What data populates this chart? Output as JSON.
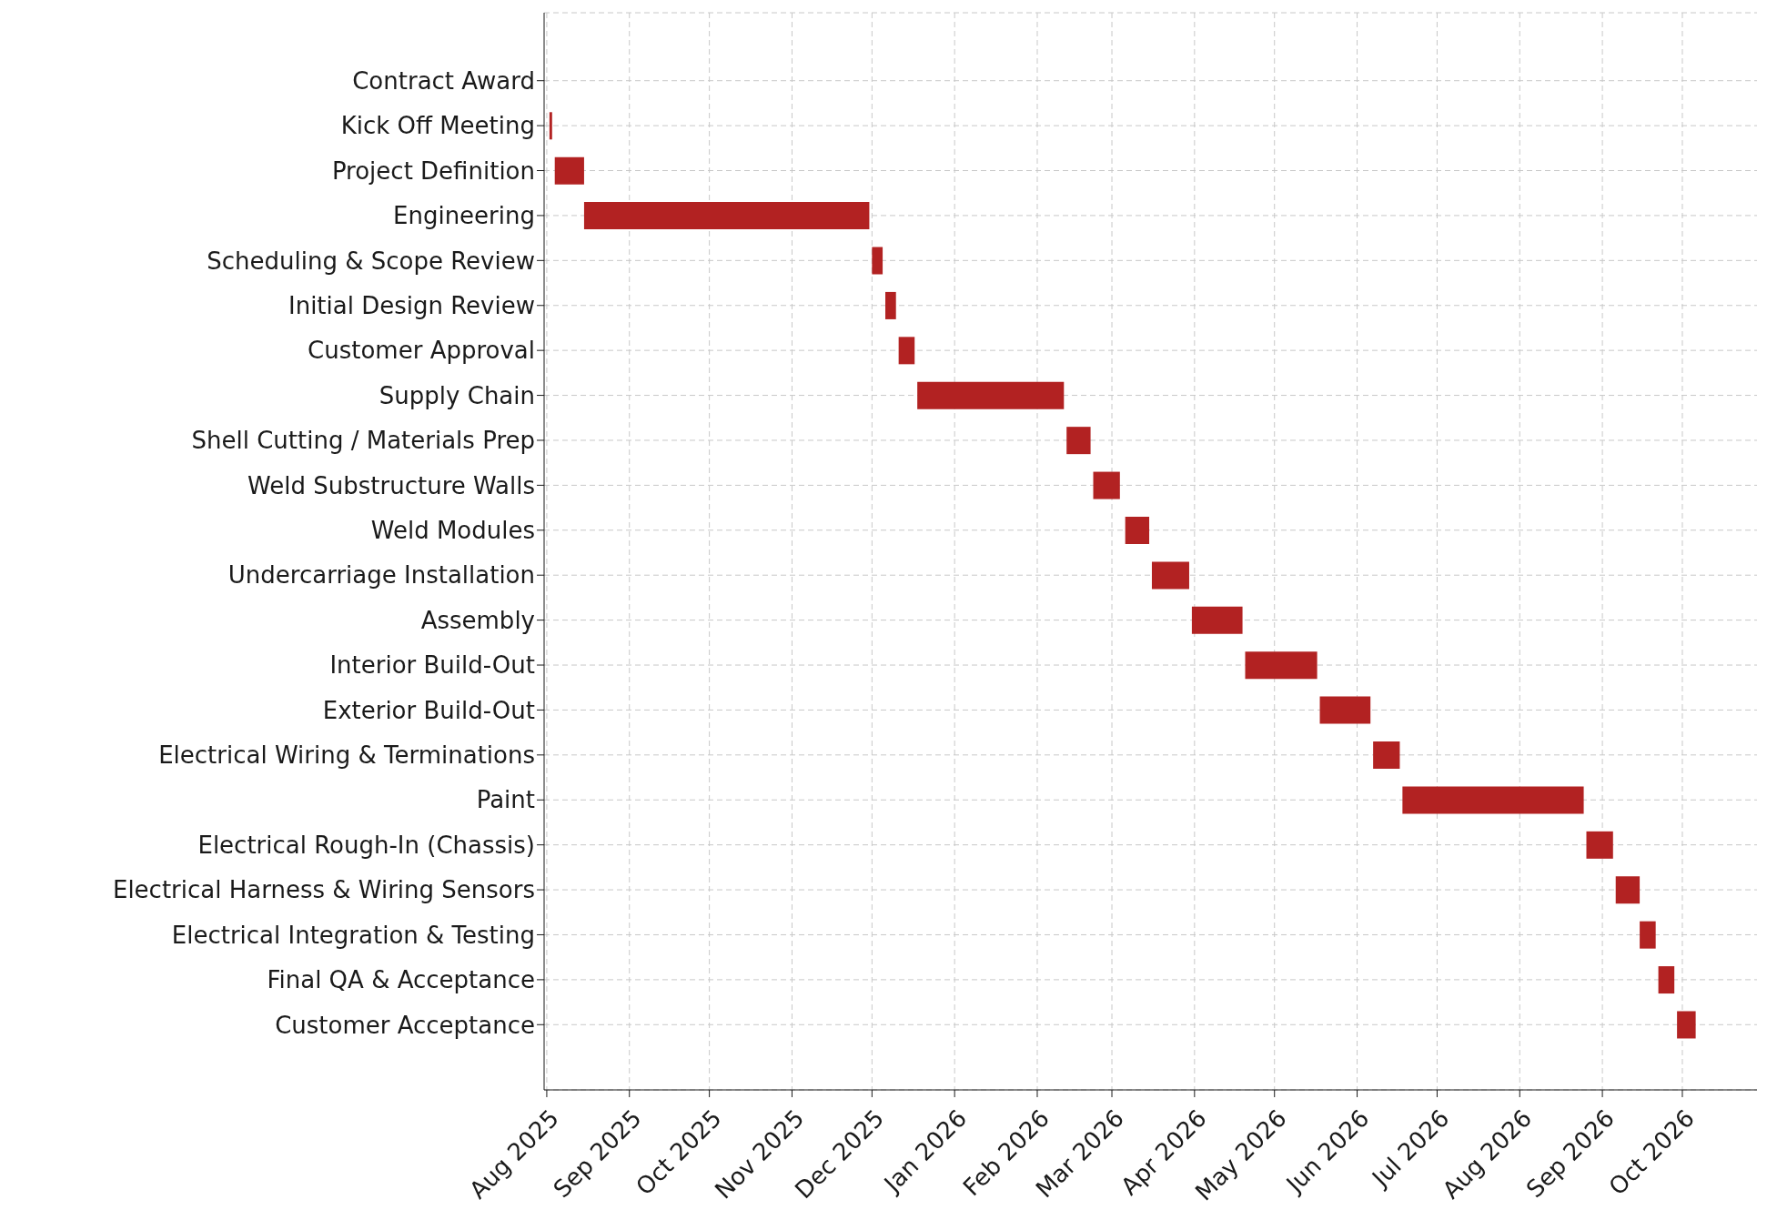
{
  "chart_data": {
    "type": "bar",
    "orientation": "horizontal",
    "categories": [
      "Contract Award",
      "Kick Off Meeting",
      "Project Definition",
      "Engineering",
      "Scheduling & Scope Review",
      "Initial Design Review",
      "Customer Approval",
      "Supply Chain",
      "Shell Cutting / Materials Prep",
      "Weld Substructure Walls",
      "Weld Modules",
      "Undercarriage Installation",
      "Assembly",
      "Interior Build-Out",
      "Exterior Build-Out",
      "Electrical Wiring & Terminations",
      "Paint",
      "Electrical Rough-In (Chassis)",
      "Electrical Harness & Wiring Sensors",
      "Electrical Integration & Testing",
      "Final QA & Acceptance",
      "Customer Acceptance"
    ],
    "base": [
      null,
      20302,
      20304,
      20315,
      20423,
      20428,
      20433,
      20440,
      20496,
      20506,
      20518,
      20528,
      20543,
      20563,
      20591,
      20611,
      20622,
      20691,
      20702,
      20711,
      20718,
      20725
    ],
    "values": [
      null,
      1,
      11,
      107,
      4,
      4,
      6,
      55,
      9,
      10,
      9,
      14,
      19,
      27,
      19,
      10,
      68,
      10,
      9,
      6,
      6,
      7
    ],
    "color": "#b22222",
    "xlim": [
      "2025-07-31",
      "2026-10-29"
    ],
    "xticks": [
      {
        "value": "2025-08-01",
        "label": "Aug 2025"
      },
      {
        "value": "2025-09-01",
        "label": "Sep 2025"
      },
      {
        "value": "2025-10-01",
        "label": "Oct 2025"
      },
      {
        "value": "2025-11-01",
        "label": "Nov 2025"
      },
      {
        "value": "2025-12-01",
        "label": "Dec 2025"
      },
      {
        "value": "2026-01-01",
        "label": "Jan 2026"
      },
      {
        "value": "2026-02-01",
        "label": "Feb 2026"
      },
      {
        "value": "2026-03-01",
        "label": "Mar 2026"
      },
      {
        "value": "2026-04-01",
        "label": "Apr 2026"
      },
      {
        "value": "2026-05-01",
        "label": "May 2026"
      },
      {
        "value": "2026-06-01",
        "label": "Jun 2026"
      },
      {
        "value": "2026-07-01",
        "label": "Jul 2026"
      },
      {
        "value": "2026-08-01",
        "label": "Aug 2026"
      },
      {
        "value": "2026-09-01",
        "label": "Sep 2026"
      },
      {
        "value": "2026-10-01",
        "label": "Oct 2026"
      }
    ],
    "grid": true
  }
}
